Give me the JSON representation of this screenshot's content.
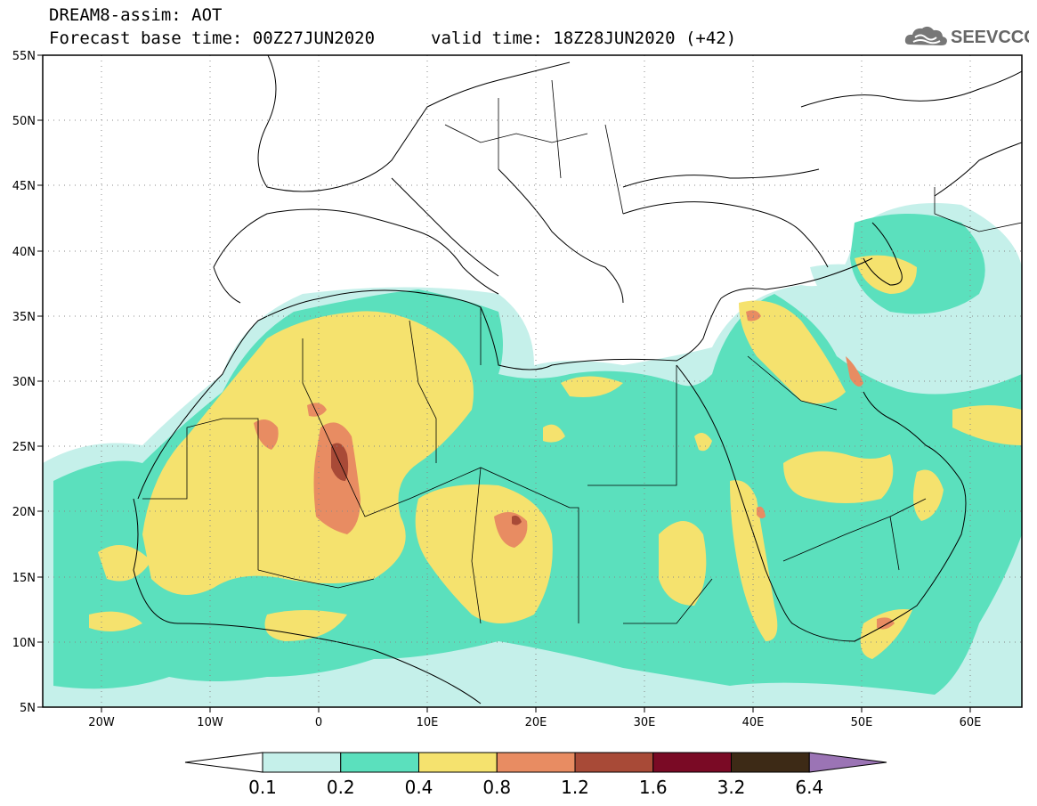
{
  "header": {
    "title": "DREAM8-assim: AOT",
    "base_time": "Forecast base time: 00Z27JUN2020",
    "valid_time": "valid time: 18Z28JUN2020 (+42)"
  },
  "logo": {
    "text": "SEEVCCC",
    "icon": "cloud-icon"
  },
  "map": {
    "lon_range": [
      -25,
      65
    ],
    "lat_range": [
      5,
      55
    ],
    "lat_ticks": [
      "55N",
      "50N",
      "45N",
      "40N",
      "35N",
      "30N",
      "25N",
      "20N",
      "15N",
      "10N",
      "5N"
    ],
    "lon_ticks": [
      "20W",
      "10W",
      "0",
      "10E",
      "20E",
      "30E",
      "40E",
      "50E",
      "60E"
    ],
    "grid": "dotted"
  },
  "colorbar": {
    "labels": [
      "0.1",
      "0.2",
      "0.4",
      "0.8",
      "1.2",
      "1.6",
      "3.2",
      "6.4"
    ],
    "colors": [
      "#ffffff",
      "#c5f0ea",
      "#5be0bd",
      "#f5e26e",
      "#e88c62",
      "#a84a37",
      "#7a0a25",
      "#3d2a16",
      "#9b74b5"
    ]
  }
}
